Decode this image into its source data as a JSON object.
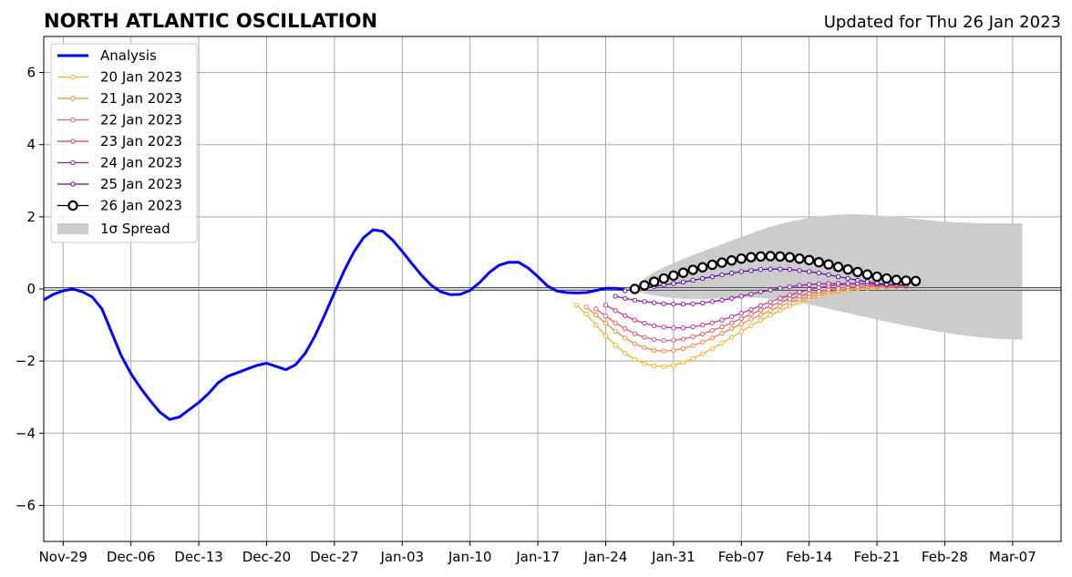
{
  "header": {
    "title": "NORTH ATLANTIC OSCILLATION",
    "updated": "Updated for Thu 26 Jan 2023"
  },
  "chart_data": {
    "type": "line",
    "title": "NORTH ATLANTIC OSCILLATION",
    "subtitle": "Updated for Thu 26 Jan 2023",
    "xlabel": "",
    "ylabel": "",
    "x_axis": "date",
    "xlim": [
      "2022-11-27",
      "2023-03-12"
    ],
    "ylim": [
      -7,
      7
    ],
    "x_ticks": [
      {
        "date": "2022-11-29",
        "label": "Nov-29"
      },
      {
        "date": "2022-12-06",
        "label": "Dec-06"
      },
      {
        "date": "2022-12-13",
        "label": "Dec-13"
      },
      {
        "date": "2022-12-20",
        "label": "Dec-20"
      },
      {
        "date": "2022-12-27",
        "label": "Dec-27"
      },
      {
        "date": "2023-01-03",
        "label": "Jan-03"
      },
      {
        "date": "2023-01-10",
        "label": "Jan-10"
      },
      {
        "date": "2023-01-17",
        "label": "Jan-17"
      },
      {
        "date": "2023-01-24",
        "label": "Jan-24"
      },
      {
        "date": "2023-01-31",
        "label": "Jan-31"
      },
      {
        "date": "2023-02-07",
        "label": "Feb-07"
      },
      {
        "date": "2023-02-14",
        "label": "Feb-14"
      },
      {
        "date": "2023-02-21",
        "label": "Feb-21"
      },
      {
        "date": "2023-02-28",
        "label": "Feb-28"
      },
      {
        "date": "2023-03-07",
        "label": "Mar-07"
      }
    ],
    "y_ticks": [
      {
        "value": -6,
        "label": "−6"
      },
      {
        "value": -4,
        "label": "−4"
      },
      {
        "value": -2,
        "label": "−2"
      },
      {
        "value": 0,
        "label": "0"
      },
      {
        "value": 2,
        "label": "2"
      },
      {
        "value": 4,
        "label": "4"
      },
      {
        "value": 6,
        "label": "6"
      }
    ],
    "grid": true,
    "zero_line": true,
    "legend_position": "top-left",
    "series": [
      {
        "name": "Analysis",
        "color": "#0000ee",
        "marker": "none",
        "start": "2022-11-27",
        "values": [
          -0.3,
          -0.15,
          -0.05,
          0.0,
          -0.08,
          -0.22,
          -0.55,
          -1.2,
          -1.85,
          -2.35,
          -2.75,
          -3.1,
          -3.42,
          -3.62,
          -3.55,
          -3.35,
          -3.15,
          -2.9,
          -2.6,
          -2.42,
          -2.32,
          -2.22,
          -2.12,
          -2.06,
          -2.15,
          -2.24,
          -2.1,
          -1.78,
          -1.3,
          -0.72,
          -0.1,
          0.5,
          1.02,
          1.42,
          1.64,
          1.6,
          1.36,
          1.04,
          0.7,
          0.38,
          0.1,
          -0.08,
          -0.16,
          -0.15,
          -0.04,
          0.18,
          0.46,
          0.66,
          0.74,
          0.74,
          0.58,
          0.34,
          0.08,
          -0.06,
          -0.1,
          -0.11,
          -0.1,
          -0.04,
          0.02,
          0.02,
          -0.02
        ]
      },
      {
        "name": "20 Jan 2023",
        "color": "#f4b42a",
        "marker": "dot",
        "start": "2023-01-21",
        "values": [
          -0.45,
          -0.7,
          -1.0,
          -1.3,
          -1.56,
          -1.78,
          -1.95,
          -2.07,
          -2.13,
          -2.15,
          -2.12,
          -2.04,
          -1.93,
          -1.8,
          -1.65,
          -1.5,
          -1.34,
          -1.18,
          -1.02,
          -0.87,
          -0.73,
          -0.6,
          -0.48,
          -0.37,
          -0.28,
          -0.2,
          -0.13,
          -0.08,
          -0.04,
          0.0,
          0.02,
          0.04,
          0.05,
          0.06,
          0.06
        ]
      },
      {
        "name": "21 Jan 2023",
        "color": "#ee8a48",
        "marker": "dot",
        "start": "2023-01-22",
        "values": [
          -0.5,
          -0.72,
          -0.95,
          -1.17,
          -1.36,
          -1.52,
          -1.63,
          -1.7,
          -1.72,
          -1.7,
          -1.65,
          -1.57,
          -1.47,
          -1.36,
          -1.23,
          -1.1,
          -0.97,
          -0.84,
          -0.72,
          -0.6,
          -0.48,
          -0.38,
          -0.29,
          -0.21,
          -0.14,
          -0.08,
          -0.04,
          0.0,
          0.03,
          0.05,
          0.06,
          0.07,
          0.07,
          0.07
        ]
      },
      {
        "name": "22 Jan 2023",
        "color": "#de6070",
        "marker": "dot",
        "start": "2023-01-23",
        "values": [
          -0.55,
          -0.75,
          -0.94,
          -1.1,
          -1.24,
          -1.34,
          -1.4,
          -1.43,
          -1.42,
          -1.39,
          -1.33,
          -1.25,
          -1.15,
          -1.05,
          -0.94,
          -0.82,
          -0.7,
          -0.58,
          -0.47,
          -0.37,
          -0.28,
          -0.2,
          -0.13,
          -0.07,
          -0.02,
          0.02,
          0.05,
          0.07,
          0.08,
          0.09,
          0.09,
          0.09,
          0.09
        ]
      },
      {
        "name": "23 Jan 2023",
        "color": "#c03a8c",
        "marker": "dot",
        "start": "2023-01-24",
        "values": [
          -0.45,
          -0.6,
          -0.74,
          -0.86,
          -0.95,
          -1.02,
          -1.06,
          -1.08,
          -1.08,
          -1.05,
          -1.0,
          -0.94,
          -0.86,
          -0.77,
          -0.67,
          -0.57,
          -0.46,
          -0.36,
          -0.26,
          -0.17,
          -0.09,
          -0.02,
          0.04,
          0.08,
          0.11,
          0.13,
          0.14,
          0.14,
          0.13,
          0.12,
          0.11,
          0.1
        ]
      },
      {
        "name": "24 Jan 2023",
        "color": "#8e1ca0",
        "marker": "dot",
        "start": "2023-01-25",
        "values": [
          -0.2,
          -0.26,
          -0.31,
          -0.35,
          -0.38,
          -0.41,
          -0.42,
          -0.42,
          -0.41,
          -0.39,
          -0.35,
          -0.31,
          -0.26,
          -0.2,
          -0.14,
          -0.08,
          -0.03,
          0.02,
          0.06,
          0.1,
          0.12,
          0.14,
          0.15,
          0.15,
          0.15,
          0.15,
          0.14,
          0.13,
          0.12,
          0.11,
          0.1
        ]
      },
      {
        "name": "25 Jan 2023",
        "color": "#5a0ca8",
        "marker": "dot",
        "start": "2023-01-26",
        "values": [
          -0.05,
          -0.01,
          0.03,
          0.07,
          0.11,
          0.15,
          0.19,
          0.24,
          0.29,
          0.34,
          0.39,
          0.44,
          0.48,
          0.51,
          0.54,
          0.55,
          0.55,
          0.54,
          0.51,
          0.48,
          0.44,
          0.39,
          0.34,
          0.29,
          0.24,
          0.2,
          0.16,
          0.13,
          0.11,
          0.1
        ]
      },
      {
        "name": "26 Jan 2023",
        "color": "#000000",
        "marker": "circle",
        "start": "2023-01-27",
        "values": [
          0.0,
          0.1,
          0.2,
          0.29,
          0.37,
          0.45,
          0.53,
          0.6,
          0.67,
          0.73,
          0.79,
          0.84,
          0.88,
          0.9,
          0.91,
          0.9,
          0.88,
          0.84,
          0.8,
          0.74,
          0.68,
          0.61,
          0.54,
          0.47,
          0.4,
          0.34,
          0.29,
          0.25,
          0.23,
          0.22
        ]
      }
    ],
    "spread": {
      "name": "1σ Spread",
      "color": "#cccccc",
      "start": "2023-01-27",
      "upper": [
        0.05,
        0.28,
        0.46,
        0.6,
        0.72,
        0.83,
        0.94,
        1.04,
        1.14,
        1.24,
        1.34,
        1.44,
        1.54,
        1.64,
        1.72,
        1.8,
        1.86,
        1.92,
        1.97,
        2.01,
        2.04,
        2.06,
        2.07,
        2.07,
        2.06,
        2.04,
        2.02,
        2.0,
        1.97,
        1.94,
        1.92,
        1.89,
        1.87,
        1.85,
        1.84,
        1.83,
        1.82,
        1.82,
        1.82,
        1.82,
        1.82
      ],
      "lower": [
        -0.05,
        -0.12,
        -0.18,
        -0.22,
        -0.25,
        -0.27,
        -0.28,
        -0.28,
        -0.27,
        -0.26,
        -0.25,
        -0.24,
        -0.24,
        -0.25,
        -0.27,
        -0.3,
        -0.34,
        -0.38,
        -0.43,
        -0.49,
        -0.55,
        -0.61,
        -0.67,
        -0.73,
        -0.79,
        -0.85,
        -0.91,
        -0.96,
        -1.02,
        -1.07,
        -1.12,
        -1.17,
        -1.21,
        -1.25,
        -1.29,
        -1.32,
        -1.35,
        -1.37,
        -1.39,
        -1.4,
        -1.41
      ]
    }
  }
}
